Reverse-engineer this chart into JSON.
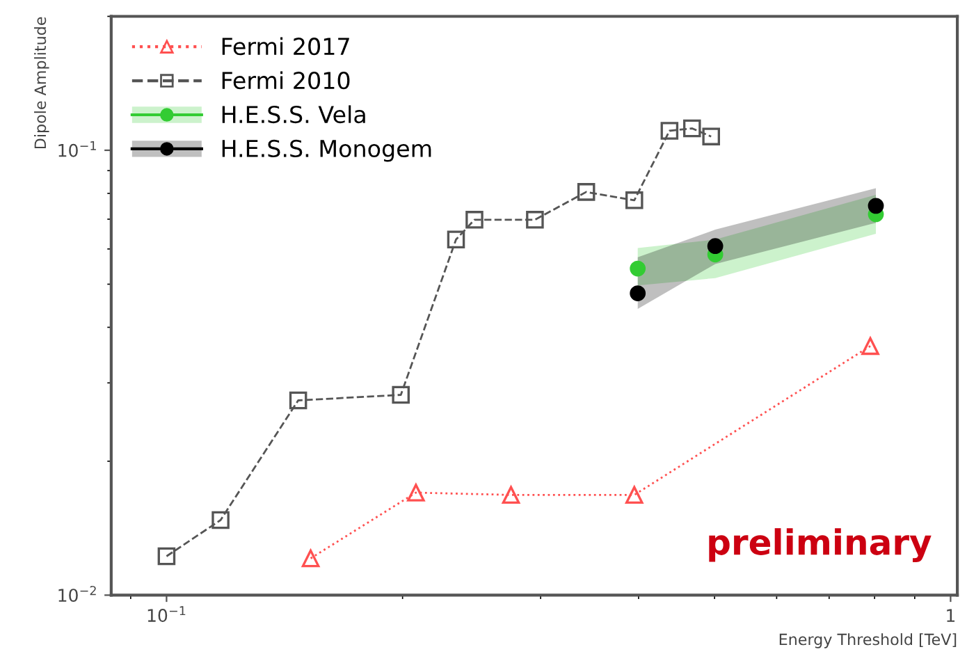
{
  "chart_data": {
    "type": "line",
    "xlabel": "Energy Threshold [TeV]",
    "ylabel": "Dipole Amplitude",
    "log": "xy",
    "xlim": [
      0.085,
      1.02
    ],
    "ylim": [
      0.01,
      0.2
    ],
    "xticks": [
      {
        "value": 0.1,
        "label": "10$^{−1}$"
      },
      {
        "value": 1,
        "label": "1"
      }
    ],
    "yticks": [
      {
        "value": 0.01,
        "label": "10$^{−2}$"
      },
      {
        "value": 0.1,
        "label": "10$^{−1}$"
      }
    ],
    "legend": "top left",
    "grid": false,
    "annotations": [
      "preliminary"
    ],
    "series": [
      {
        "name": "Fermi 2017",
        "color": "#ff5050",
        "marker": "triangle",
        "line_style": "dotted",
        "x": [
          0.1527,
          0.208,
          0.275,
          0.395,
          0.79
        ],
        "values": [
          0.0121,
          0.017,
          0.0168,
          0.0168,
          0.0363
        ]
      },
      {
        "name": "Fermi 2010",
        "color": "#555555",
        "marker": "square",
        "line_style": "dashed",
        "x": [
          0.1,
          0.1172,
          0.1472,
          0.199,
          0.234,
          0.247,
          0.295,
          0.343,
          0.395,
          0.438,
          0.468,
          0.495
        ],
        "values": [
          0.01223,
          0.01475,
          0.0274,
          0.0282,
          0.063,
          0.0698,
          0.0698,
          0.0806,
          0.0772,
          0.1106,
          0.112,
          0.1074
        ]
      },
      {
        "name": "H.E.S.S. Vela",
        "type": "scatter",
        "color": "#33cc33",
        "marker": "circle",
        "x": [
          0.399,
          0.501,
          0.803
        ],
        "values": [
          0.0542,
          0.0583,
          0.0718
        ],
        "lower": [
          0.0497,
          0.0516,
          0.0649
        ],
        "upper": [
          0.0603,
          0.063,
          0.0794
        ]
      },
      {
        "name": "H.E.S.S. Monogem",
        "type": "scatter",
        "color": "#000000",
        "marker": "circle",
        "x": [
          0.399,
          0.501,
          0.803
        ],
        "values": [
          0.0477,
          0.0609,
          0.075
        ],
        "lower": [
          0.044,
          0.0555,
          0.0687
        ],
        "upper": [
          0.0575,
          0.0663,
          0.0822
        ]
      }
    ]
  }
}
